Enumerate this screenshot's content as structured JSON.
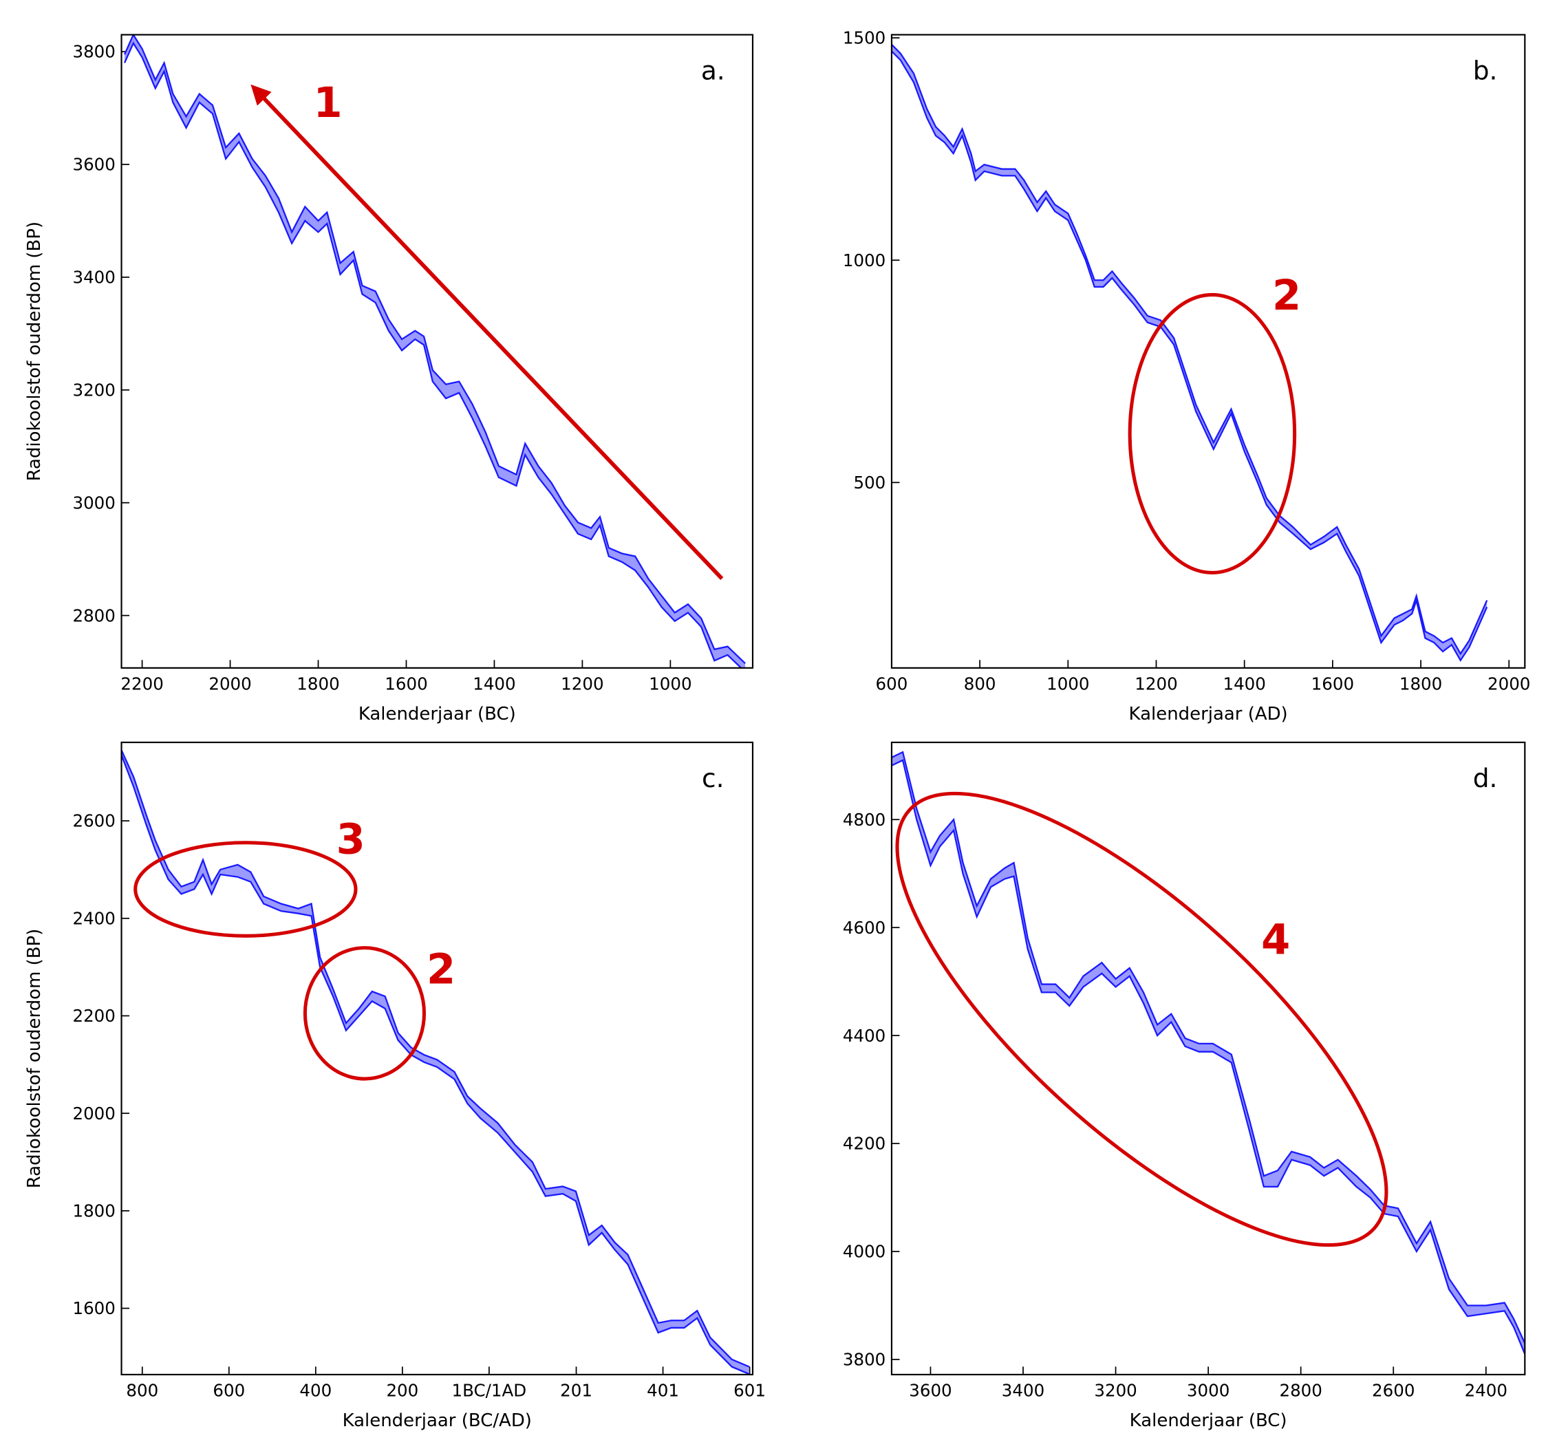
{
  "chart_data": [
    {
      "type": "line",
      "panel_label": "a.",
      "xlabel": "Kalenderjaar (BC)",
      "ylabel": "Radiokoolstof ouderdom (BP)",
      "xlim": [
        2247,
        813
      ],
      "ylim": [
        2707,
        3830
      ],
      "xticks": [
        2200,
        2000,
        1800,
        1600,
        1400,
        1200,
        1000
      ],
      "yticks": [
        2800,
        3000,
        3200,
        3400,
        3600,
        3800
      ],
      "line_color": "#1a1aff",
      "band_color": "#9a9aff",
      "x": [
        2240,
        2220,
        2200,
        2170,
        2150,
        2130,
        2100,
        2070,
        2040,
        2010,
        1980,
        1950,
        1920,
        1890,
        1860,
        1830,
        1800,
        1780,
        1750,
        1720,
        1700,
        1670,
        1640,
        1610,
        1580,
        1560,
        1540,
        1510,
        1480,
        1450,
        1420,
        1390,
        1350,
        1330,
        1300,
        1270,
        1240,
        1210,
        1180,
        1160,
        1140,
        1110,
        1080,
        1050,
        1020,
        990,
        960,
        930,
        900,
        870,
        830
      ],
      "lower": [
        3780,
        3815,
        3790,
        3735,
        3765,
        3710,
        3665,
        3710,
        3690,
        3610,
        3640,
        3595,
        3560,
        3515,
        3460,
        3500,
        3480,
        3495,
        3405,
        3430,
        3370,
        3355,
        3305,
        3270,
        3290,
        3280,
        3215,
        3185,
        3195,
        3150,
        3100,
        3045,
        3030,
        3085,
        3045,
        3015,
        2980,
        2945,
        2935,
        2960,
        2905,
        2895,
        2880,
        2850,
        2815,
        2790,
        2805,
        2780,
        2720,
        2730,
        2700
      ],
      "upper": [
        3795,
        3830,
        3805,
        3750,
        3780,
        3725,
        3685,
        3725,
        3705,
        3630,
        3655,
        3610,
        3580,
        3540,
        3480,
        3525,
        3500,
        3515,
        3425,
        3445,
        3385,
        3375,
        3325,
        3290,
        3305,
        3295,
        3235,
        3210,
        3215,
        3175,
        3125,
        3065,
        3050,
        3105,
        3065,
        3035,
        2995,
        2965,
        2955,
        2975,
        2920,
        2910,
        2905,
        2865,
        2835,
        2805,
        2820,
        2795,
        2740,
        2745,
        2715
      ],
      "annotations": [
        "1"
      ]
    },
    {
      "type": "line",
      "panel_label": "b.",
      "xlabel": "Kalenderjaar (AD)",
      "xlim": [
        600,
        2036
      ],
      "ylim": [
        83,
        1507
      ],
      "xticks": [
        600,
        800,
        1000,
        1200,
        1400,
        1600,
        1800,
        2000
      ],
      "yticks": [
        500,
        1000,
        1500
      ],
      "line_color": "#1a1aff",
      "band_color": "#9a9aff",
      "x": [
        600,
        620,
        650,
        680,
        700,
        720,
        740,
        760,
        780,
        790,
        810,
        850,
        880,
        900,
        930,
        950,
        970,
        1000,
        1020,
        1040,
        1060,
        1080,
        1100,
        1120,
        1150,
        1180,
        1210,
        1240,
        1260,
        1290,
        1330,
        1370,
        1400,
        1430,
        1450,
        1480,
        1510,
        1550,
        1580,
        1610,
        1630,
        1660,
        1690,
        1710,
        1740,
        1760,
        1780,
        1790,
        1810,
        1830,
        1850,
        1870,
        1890,
        1910,
        1950
      ],
      "lower": [
        1470,
        1450,
        1400,
        1320,
        1280,
        1265,
        1240,
        1280,
        1220,
        1180,
        1200,
        1190,
        1190,
        1160,
        1110,
        1140,
        1110,
        1090,
        1045,
        1000,
        940,
        940,
        960,
        935,
        900,
        860,
        850,
        810,
        750,
        660,
        575,
        655,
        570,
        500,
        450,
        410,
        385,
        350,
        365,
        385,
        345,
        290,
        200,
        140,
        180,
        190,
        205,
        235,
        150,
        140,
        120,
        135,
        100,
        130,
        220
      ],
      "upper": [
        1485,
        1465,
        1420,
        1340,
        1300,
        1280,
        1255,
        1295,
        1240,
        1200,
        1215,
        1205,
        1205,
        1180,
        1130,
        1155,
        1125,
        1105,
        1060,
        1010,
        955,
        955,
        975,
        950,
        915,
        875,
        865,
        825,
        765,
        675,
        590,
        665,
        585,
        515,
        465,
        425,
        400,
        360,
        378,
        400,
        360,
        305,
        215,
        155,
        195,
        205,
        215,
        245,
        165,
        155,
        140,
        150,
        115,
        145,
        235
      ],
      "annotations": [
        "2"
      ]
    },
    {
      "type": "line",
      "panel_label": "c.",
      "xlabel": "Kalenderjaar (BC/AD)",
      "ylabel": "Radiokoolstof ouderdom (BP)",
      "xlim": [
        -848,
        608
      ],
      "ylim": [
        1464,
        2761
      ],
      "xticks": [
        {
          "value": -800,
          "label": "800"
        },
        {
          "value": -600,
          "label": "600"
        },
        {
          "value": -400,
          "label": "400"
        },
        {
          "value": -200,
          "label": "200"
        },
        {
          "value": 0,
          "label": "1BC/1AD"
        },
        201,
        401,
        601
      ],
      "yticks": [
        1600,
        1800,
        2000,
        2200,
        2400,
        2600
      ],
      "line_color": "#1a1aff",
      "band_color": "#9a9aff",
      "x": [
        -848,
        -820,
        -790,
        -770,
        -740,
        -710,
        -680,
        -660,
        -640,
        -620,
        -580,
        -550,
        -520,
        -480,
        -440,
        -410,
        -390,
        -360,
        -330,
        -300,
        -270,
        -240,
        -210,
        -180,
        -150,
        -120,
        -80,
        -50,
        -20,
        20,
        60,
        100,
        130,
        170,
        200,
        230,
        260,
        290,
        320,
        350,
        390,
        420,
        450,
        480,
        510,
        560,
        600
      ],
      "lower": [
        2735,
        2670,
        2590,
        2540,
        2480,
        2450,
        2460,
        2490,
        2450,
        2490,
        2485,
        2475,
        2430,
        2415,
        2410,
        2405,
        2300,
        2240,
        2170,
        2200,
        2230,
        2215,
        2150,
        2120,
        2105,
        2095,
        2070,
        2020,
        1990,
        1960,
        1920,
        1880,
        1830,
        1835,
        1820,
        1730,
        1755,
        1720,
        1690,
        1630,
        1550,
        1560,
        1560,
        1580,
        1525,
        1480,
        1465
      ],
      "upper": [
        2745,
        2690,
        2610,
        2560,
        2500,
        2465,
        2475,
        2520,
        2470,
        2500,
        2510,
        2495,
        2445,
        2430,
        2420,
        2430,
        2320,
        2255,
        2185,
        2215,
        2250,
        2240,
        2165,
        2135,
        2120,
        2110,
        2085,
        2035,
        2010,
        1980,
        1935,
        1900,
        1845,
        1850,
        1840,
        1750,
        1770,
        1735,
        1710,
        1650,
        1570,
        1575,
        1575,
        1595,
        1540,
        1495,
        1480
      ],
      "annotations": [
        "3",
        "2"
      ]
    },
    {
      "type": "line",
      "panel_label": "d.",
      "xlabel": "Kalenderjaar (BC)",
      "xlim": [
        3684,
        2316
      ],
      "ylim": [
        3772,
        4943
      ],
      "xticks": [
        3600,
        3400,
        3200,
        3000,
        2800,
        2600,
        2400
      ],
      "yticks": [
        3800,
        4000,
        4200,
        4400,
        4600,
        4800
      ],
      "line_color": "#1a1aff",
      "band_color": "#9a9aff",
      "x": [
        3684,
        3660,
        3630,
        3600,
        3580,
        3550,
        3530,
        3500,
        3470,
        3440,
        3420,
        3390,
        3360,
        3330,
        3300,
        3270,
        3230,
        3200,
        3170,
        3140,
        3110,
        3080,
        3050,
        3020,
        2990,
        2950,
        2910,
        2880,
        2850,
        2820,
        2780,
        2750,
        2720,
        2680,
        2650,
        2620,
        2590,
        2550,
        2520,
        2480,
        2440,
        2400,
        2360,
        2340,
        2316
      ],
      "lower": [
        4900,
        4910,
        4800,
        4715,
        4750,
        4780,
        4700,
        4620,
        4675,
        4690,
        4695,
        4560,
        4480,
        4480,
        4455,
        4490,
        4515,
        4490,
        4510,
        4460,
        4400,
        4425,
        4380,
        4370,
        4370,
        4350,
        4220,
        4120,
        4120,
        4170,
        4160,
        4140,
        4155,
        4120,
        4100,
        4070,
        4065,
        4000,
        4040,
        3930,
        3880,
        3885,
        3890,
        3860,
        3810
      ],
      "upper": [
        4915,
        4925,
        4820,
        4740,
        4770,
        4800,
        4720,
        4640,
        4690,
        4710,
        4720,
        4580,
        4495,
        4495,
        4470,
        4510,
        4535,
        4505,
        4525,
        4480,
        4420,
        4440,
        4395,
        4385,
        4385,
        4365,
        4240,
        4140,
        4150,
        4185,
        4175,
        4155,
        4170,
        4140,
        4115,
        4085,
        4080,
        4015,
        4055,
        3950,
        3900,
        3900,
        3905,
        3875,
        3830
      ],
      "annotations": [
        "4"
      ]
    }
  ]
}
